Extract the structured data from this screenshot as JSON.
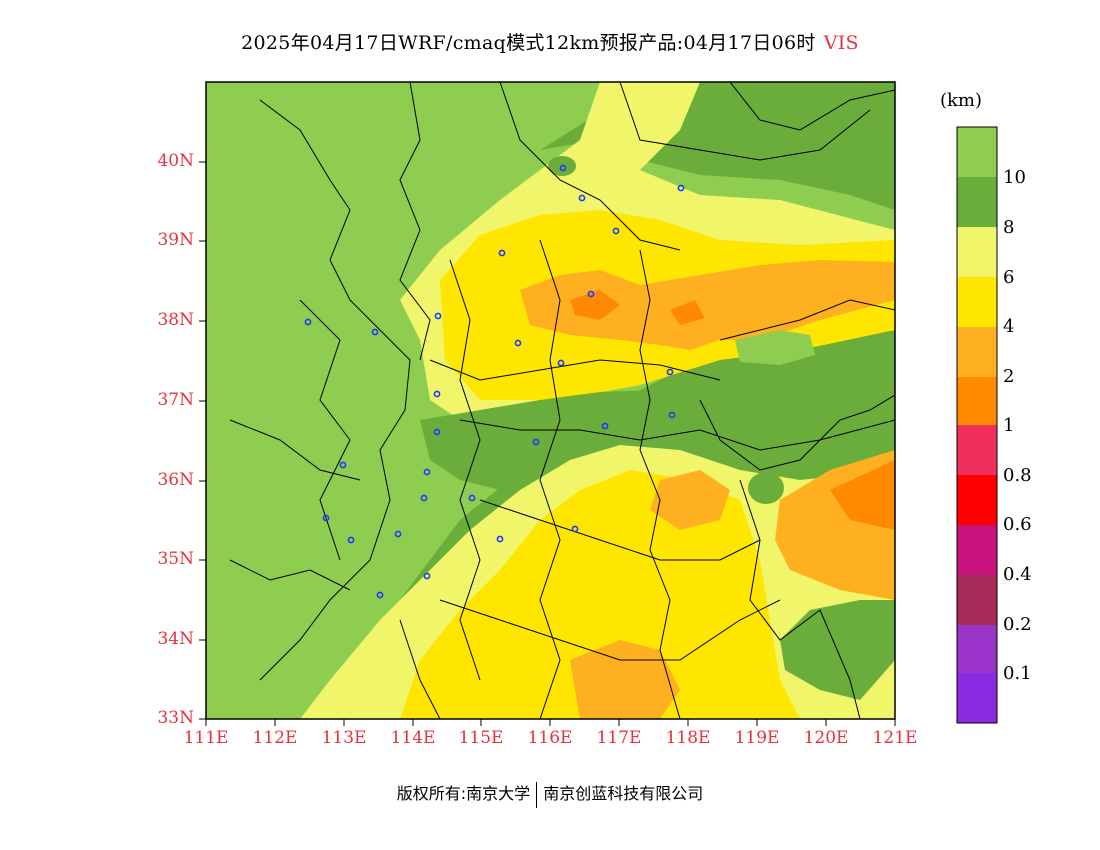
{
  "title": {
    "main": "2025年04月17日WRF/cmaq模式12km预报产品:04月17日06时",
    "variable": "VIS"
  },
  "map": {
    "lat_labels": [
      "40N",
      "39N",
      "38N",
      "37N",
      "36N",
      "35N",
      "34N",
      "33N"
    ],
    "lon_labels": [
      "111E",
      "112E",
      "113E",
      "114E",
      "115E",
      "116E",
      "117E",
      "118E",
      "119E",
      "120E",
      "121E"
    ]
  },
  "colorbar": {
    "unit": "(km)",
    "levels": [
      "10",
      "8",
      "6",
      "4",
      "2",
      "1",
      "0.8",
      "0.6",
      "0.4",
      "0.2",
      "0.1"
    ],
    "colors": [
      "#8fcd50",
      "#6aad3a",
      "#f0f56a",
      "#ffe600",
      "#ffb020",
      "#ff8a00",
      "#f0305a",
      "#ff0000",
      "#c8127e",
      "#a82c5a",
      "#9a34c8",
      "#8a2be2"
    ]
  },
  "footer": {
    "left": "版权所有:南京大学",
    "right": "南京创蓝科技有限公司"
  }
}
